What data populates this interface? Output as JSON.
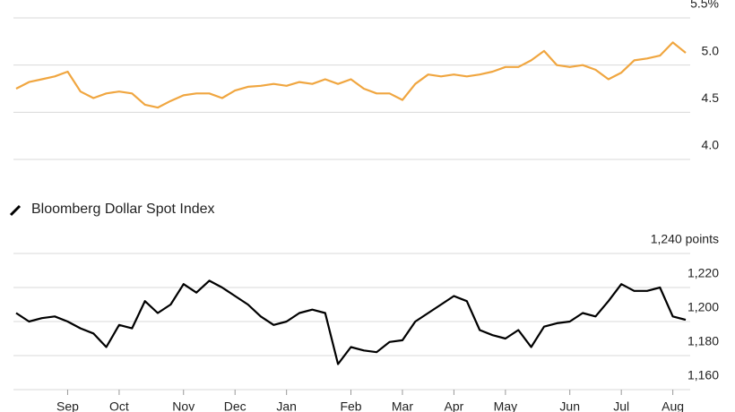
{
  "chart_data": [
    {
      "type": "line",
      "categories": [
        null,
        null,
        null,
        null,
        "Sep",
        null,
        null,
        null,
        "Oct",
        null,
        null,
        null,
        null,
        "Nov",
        null,
        null,
        null,
        "Dec",
        null,
        null,
        null,
        "Jan",
        null,
        null,
        null,
        null,
        "Feb",
        null,
        null,
        null,
        "Mar",
        null,
        null,
        null,
        "Apr",
        null,
        null,
        null,
        "May",
        null,
        null,
        null,
        null,
        "Jun",
        null,
        null,
        null,
        "Jul",
        null,
        null,
        null,
        "Aug",
        null
      ],
      "series": [
        {
          "color": "#f0a640",
          "values": [
            4.75,
            4.82,
            4.85,
            4.88,
            4.93,
            4.72,
            4.65,
            4.7,
            4.72,
            4.7,
            4.58,
            4.55,
            4.62,
            4.68,
            4.7,
            4.7,
            4.65,
            4.73,
            4.77,
            4.78,
            4.8,
            4.78,
            4.82,
            4.8,
            4.85,
            4.8,
            4.85,
            4.75,
            4.7,
            4.7,
            4.63,
            4.8,
            4.9,
            4.88,
            4.9,
            4.88,
            4.9,
            4.93,
            4.98,
            4.98,
            5.05,
            5.15,
            5.0,
            4.98,
            5.0,
            4.95,
            4.85,
            4.92,
            5.05,
            5.07,
            5.1,
            5.24,
            5.13
          ]
        }
      ],
      "ylim": [
        4.0,
        5.5
      ],
      "yticks": [
        {
          "value": 4.0,
          "label": "4.0"
        },
        4.5,
        {
          "value": 5.0,
          "label": "5.0"
        },
        {
          "value": 5.5,
          "label": "5.5%"
        }
      ],
      "grid": true
    },
    {
      "type": "line",
      "title": "Bloomberg Dollar Spot Index",
      "categories": [
        null,
        null,
        null,
        null,
        "Sep",
        null,
        null,
        null,
        "Oct",
        null,
        null,
        null,
        null,
        "Nov",
        null,
        null,
        null,
        "Dec",
        null,
        null,
        null,
        "Jan",
        null,
        null,
        null,
        null,
        "Feb",
        null,
        null,
        null,
        "Mar",
        null,
        null,
        null,
        "Apr",
        null,
        null,
        null,
        "May",
        null,
        null,
        null,
        null,
        "Jun",
        null,
        null,
        null,
        "Jul",
        null,
        null,
        null,
        "Aug",
        null
      ],
      "series": [
        {
          "color": "#000000",
          "values": [
            1205,
            1200,
            1202,
            1203,
            1200,
            1196,
            1193,
            1185,
            1198,
            1196,
            1212,
            1205,
            1210,
            1222,
            1217,
            1224,
            1220,
            1215,
            1210,
            1203,
            1198,
            1200,
            1205,
            1207,
            1205,
            1175,
            1185,
            1183,
            1182,
            1188,
            1189,
            1200,
            1205,
            1210,
            1215,
            1212,
            1195,
            1192,
            1190,
            1195,
            1185,
            1197,
            1199,
            1200,
            1205,
            1203,
            1212,
            1222,
            1218,
            1218,
            1220,
            1203,
            1201
          ]
        }
      ],
      "ylim": [
        1160,
        1240
      ],
      "yticks": [
        {
          "value": 1160,
          "label": "1,160"
        },
        {
          "value": 1180,
          "label": "1,180"
        },
        {
          "value": 1200,
          "label": "1,200"
        },
        {
          "value": 1220,
          "label": "1,220"
        },
        {
          "value": 1240,
          "label": "1,240 points"
        }
      ],
      "grid": true,
      "show_x_labels": true
    }
  ]
}
